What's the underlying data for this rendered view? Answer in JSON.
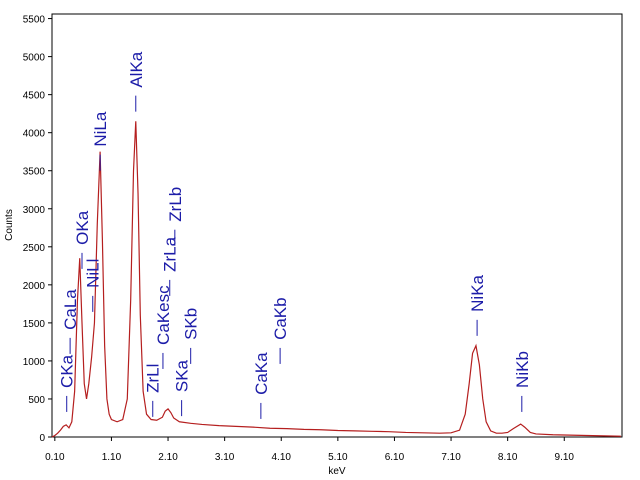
{
  "chart_data": {
    "type": "line",
    "xlabel": "keV",
    "ylabel": "Counts",
    "color": "#b51f1f",
    "annotation_color": "#1c1ca8",
    "xlim": [
      0.05,
      10.12
    ],
    "ylim": [
      0,
      5560
    ],
    "xticks": [
      {
        "value": 0.1,
        "label": "0.10"
      },
      {
        "value": 1.1,
        "label": "1.10"
      },
      {
        "value": 2.1,
        "label": "2.10"
      },
      {
        "value": 3.1,
        "label": "3.10"
      },
      {
        "value": 4.1,
        "label": "4.10"
      },
      {
        "value": 5.1,
        "label": "5.10"
      },
      {
        "value": 6.1,
        "label": "6.10"
      },
      {
        "value": 7.1,
        "label": "7.10"
      },
      {
        "value": 8.1,
        "label": "8.10"
      },
      {
        "value": 9.1,
        "label": "9.10"
      }
    ],
    "yticks": [
      0,
      500,
      1000,
      1500,
      2000,
      2500,
      3000,
      3500,
      4000,
      4500,
      5000,
      5500
    ],
    "x": [
      0.05,
      0.1,
      0.15,
      0.2,
      0.25,
      0.3,
      0.35,
      0.4,
      0.45,
      0.5,
      0.54,
      0.58,
      0.62,
      0.66,
      0.7,
      0.75,
      0.8,
      0.85,
      0.9,
      0.94,
      0.98,
      1.02,
      1.06,
      1.1,
      1.2,
      1.3,
      1.38,
      1.44,
      1.49,
      1.53,
      1.57,
      1.61,
      1.66,
      1.72,
      1.8,
      1.9,
      2.0,
      2.05,
      2.1,
      2.15,
      2.2,
      2.3,
      2.5,
      2.7,
      3.0,
      3.3,
      3.6,
      3.9,
      4.2,
      4.5,
      4.8,
      5.1,
      5.4,
      5.7,
      6.0,
      6.3,
      6.6,
      6.9,
      7.1,
      7.25,
      7.35,
      7.42,
      7.48,
      7.54,
      7.6,
      7.66,
      7.72,
      7.8,
      7.9,
      8.0,
      8.1,
      8.2,
      8.33,
      8.4,
      8.5,
      8.6,
      8.9,
      9.2,
      9.5,
      9.8,
      10.1
    ],
    "values": [
      0,
      20,
      50,
      90,
      140,
      160,
      120,
      200,
      600,
      1800,
      2350,
      1500,
      700,
      500,
      700,
      1050,
      1500,
      2800,
      3750,
      2600,
      1200,
      500,
      300,
      230,
      200,
      230,
      500,
      1800,
      3500,
      4150,
      3200,
      1600,
      600,
      300,
      230,
      220,
      260,
      340,
      370,
      320,
      250,
      200,
      180,
      165,
      150,
      140,
      130,
      115,
      110,
      100,
      95,
      85,
      80,
      75,
      70,
      60,
      55,
      50,
      55,
      90,
      300,
      700,
      1100,
      1200,
      950,
      500,
      200,
      80,
      50,
      50,
      60,
      110,
      170,
      130,
      60,
      40,
      30,
      25,
      20,
      15,
      10
    ],
    "annotations": [
      {
        "text": "CKa",
        "x": 0.31,
        "y": 645
      },
      {
        "text": "CaLa",
        "x": 0.37,
        "y": 1408
      },
      {
        "text": "OKa",
        "x": 0.58,
        "y": 2526
      },
      {
        "text": "NiLl",
        "x": 0.77,
        "y": 1960
      },
      {
        "text": "NiLa",
        "x": 0.9,
        "y": 3816
      },
      {
        "text": "AlKa",
        "x": 1.53,
        "y": 4592
      },
      {
        "text": "ZrLl",
        "x": 1.83,
        "y": 580
      },
      {
        "text": "CaKesc",
        "x": 2.01,
        "y": 1210
      },
      {
        "text": "ZrLa",
        "x": 2.13,
        "y": 2170
      },
      {
        "text": "ZrLb",
        "x": 2.22,
        "y": 2830
      },
      {
        "text": "SKa",
        "x": 2.34,
        "y": 590
      },
      {
        "text": "SKb",
        "x": 2.5,
        "y": 1276
      },
      {
        "text": "CaKa",
        "x": 3.74,
        "y": 553
      },
      {
        "text": "CaKb",
        "x": 4.08,
        "y": 1276
      },
      {
        "text": "NiKa",
        "x": 7.56,
        "y": 1645
      },
      {
        "text": "NiKb",
        "x": 8.35,
        "y": 645
      }
    ]
  }
}
